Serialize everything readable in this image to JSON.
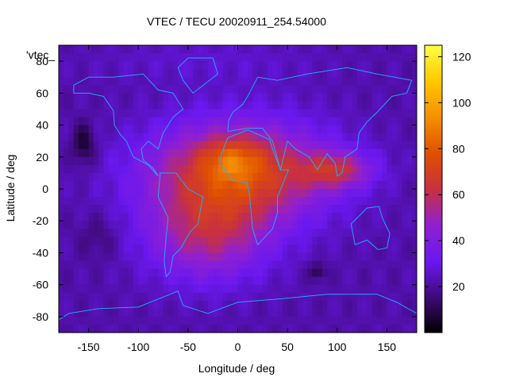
{
  "chart_data": {
    "type": "heatmap",
    "title": "VTEC / TECU 20020911_254.54000",
    "xlabel": "Longitude / deg",
    "ylabel": "Latitude / deg",
    "series_label": "'vtec_",
    "xlim": [
      -180,
      180
    ],
    "ylim": [
      -90,
      90
    ],
    "x_ticks": [
      -150,
      -100,
      -50,
      0,
      50,
      100,
      150
    ],
    "x_tick_labels": [
      "-150",
      "-100",
      "-50",
      "0",
      "50",
      "100",
      "150"
    ],
    "y_ticks": [
      -80,
      -60,
      -40,
      -20,
      0,
      20,
      40,
      60,
      80
    ],
    "y_tick_labels": [
      "-80",
      "-60",
      "-40",
      "-20",
      "0",
      "20",
      "40",
      "60",
      "80"
    ],
    "colorbar": {
      "range": [
        0,
        125
      ],
      "ticks": [
        20,
        40,
        60,
        80,
        100,
        120
      ],
      "tick_labels": [
        "20",
        "40",
        "60",
        "80",
        "100",
        "120"
      ],
      "colormap": [
        "#000000",
        "#400a7a",
        "#6a18f0",
        "#9020d0",
        "#c83040",
        "#e05000",
        "#f59000",
        "#ffc800",
        "#ffff40"
      ]
    },
    "grid": {
      "lon_step": 5,
      "lat_step": 5,
      "background_tecu": 22,
      "features": [
        {
          "name": "equatorial-crest",
          "lon": 0,
          "lat": 10,
          "sigma_lon": 62,
          "sigma_lat": 22,
          "amplitude": 52
        },
        {
          "name": "southern-crest",
          "lon": -30,
          "lat": -30,
          "sigma_lon": 42,
          "sigma_lat": 20,
          "amplitude": 30
        },
        {
          "name": "peak-africa",
          "lon": -5,
          "lat": 18,
          "sigma_lon": 20,
          "sigma_lat": 9,
          "amplitude": 18
        },
        {
          "name": "indian-ocean-tongue",
          "lon": 100,
          "lat": 12,
          "sigma_lon": 25,
          "sigma_lat": 8,
          "amplitude": 30
        },
        {
          "name": "pacific-north-low",
          "lon": -155,
          "lat": 28,
          "sigma_lon": 8,
          "sigma_lat": 9,
          "amplitude": -17
        },
        {
          "name": "indian-south-low",
          "lon": 80,
          "lat": -52,
          "sigma_lon": 6,
          "sigma_lat": 4,
          "amplitude": -14
        },
        {
          "name": "south-pacific-low",
          "lon": -140,
          "lat": -30,
          "sigma_lon": 14,
          "sigma_lat": 10,
          "amplitude": -7
        },
        {
          "name": "north-polar-rise",
          "lon": -30,
          "lat": 80,
          "sigma_lon": 80,
          "sigma_lat": 10,
          "amplitude": 5
        }
      ]
    },
    "coastlines": [
      {
        "name": "north-america",
        "points": [
          [
            -165,
            65
          ],
          [
            -150,
            70
          ],
          [
            -125,
            70
          ],
          [
            -95,
            72
          ],
          [
            -80,
            62
          ],
          [
            -65,
            60
          ],
          [
            -55,
            50
          ],
          [
            -65,
            45
          ],
          [
            -75,
            35
          ],
          [
            -80,
            25
          ],
          [
            -90,
            30
          ],
          [
            -97,
            25
          ],
          [
            -95,
            18
          ],
          [
            -85,
            13
          ],
          [
            -80,
            8
          ],
          [
            -90,
            15
          ],
          [
            -105,
            20
          ],
          [
            -112,
            30
          ],
          [
            -118,
            34
          ],
          [
            -124,
            40
          ],
          [
            -125,
            49
          ],
          [
            -135,
            58
          ],
          [
            -150,
            60
          ],
          [
            -165,
            60
          ],
          [
            -165,
            65
          ]
        ]
      },
      {
        "name": "greenland",
        "points": [
          [
            -50,
            82
          ],
          [
            -25,
            82
          ],
          [
            -20,
            72
          ],
          [
            -45,
            60
          ],
          [
            -55,
            68
          ],
          [
            -60,
            76
          ],
          [
            -50,
            82
          ]
        ]
      },
      {
        "name": "south-america",
        "points": [
          [
            -78,
            10
          ],
          [
            -62,
            10
          ],
          [
            -50,
            0
          ],
          [
            -35,
            -5
          ],
          [
            -38,
            -15
          ],
          [
            -40,
            -22
          ],
          [
            -48,
            -27
          ],
          [
            -57,
            -37
          ],
          [
            -65,
            -42
          ],
          [
            -68,
            -52
          ],
          [
            -72,
            -55
          ],
          [
            -74,
            -45
          ],
          [
            -72,
            -30
          ],
          [
            -70,
            -18
          ],
          [
            -80,
            -5
          ],
          [
            -78,
            10
          ]
        ]
      },
      {
        "name": "africa",
        "points": [
          [
            -17,
            21
          ],
          [
            -10,
            32
          ],
          [
            10,
            37
          ],
          [
            32,
            31
          ],
          [
            35,
            25
          ],
          [
            43,
            12
          ],
          [
            51,
            12
          ],
          [
            40,
            -5
          ],
          [
            40,
            -15
          ],
          [
            35,
            -25
          ],
          [
            20,
            -35
          ],
          [
            15,
            -25
          ],
          [
            12,
            -5
          ],
          [
            10,
            4
          ],
          [
            -5,
            5
          ],
          [
            -17,
            15
          ],
          [
            -17,
            21
          ]
        ]
      },
      {
        "name": "eurasia",
        "points": [
          [
            -10,
            36
          ],
          [
            -9,
            43
          ],
          [
            -5,
            48
          ],
          [
            5,
            53
          ],
          [
            10,
            58
          ],
          [
            20,
            70
          ],
          [
            40,
            68
          ],
          [
            70,
            72
          ],
          [
            110,
            76
          ],
          [
            140,
            72
          ],
          [
            175,
            68
          ],
          [
            170,
            60
          ],
          [
            155,
            58
          ],
          [
            140,
            48
          ],
          [
            130,
            42
          ],
          [
            122,
            35
          ],
          [
            120,
            25
          ],
          [
            108,
            20
          ],
          [
            105,
            10
          ],
          [
            100,
            8
          ],
          [
            98,
            16
          ],
          [
            90,
            22
          ],
          [
            80,
            12
          ],
          [
            72,
            20
          ],
          [
            58,
            25
          ],
          [
            50,
            30
          ],
          [
            43,
            12
          ],
          [
            35,
            30
          ],
          [
            25,
            38
          ],
          [
            10,
            38
          ],
          [
            -10,
            36
          ]
        ]
      },
      {
        "name": "australia",
        "points": [
          [
            114,
            -22
          ],
          [
            130,
            -12
          ],
          [
            142,
            -11
          ],
          [
            146,
            -19
          ],
          [
            153,
            -28
          ],
          [
            150,
            -37
          ],
          [
            141,
            -38
          ],
          [
            130,
            -32
          ],
          [
            118,
            -35
          ],
          [
            114,
            -22
          ]
        ]
      },
      {
        "name": "antarctica",
        "points": [
          [
            -180,
            -82
          ],
          [
            -170,
            -78
          ],
          [
            -140,
            -75
          ],
          [
            -100,
            -74
          ],
          [
            -60,
            -64
          ],
          [
            -55,
            -73
          ],
          [
            -30,
            -78
          ],
          [
            0,
            -71
          ],
          [
            40,
            -69
          ],
          [
            90,
            -66
          ],
          [
            140,
            -66
          ],
          [
            160,
            -71
          ],
          [
            180,
            -78
          ]
        ]
      }
    ]
  }
}
